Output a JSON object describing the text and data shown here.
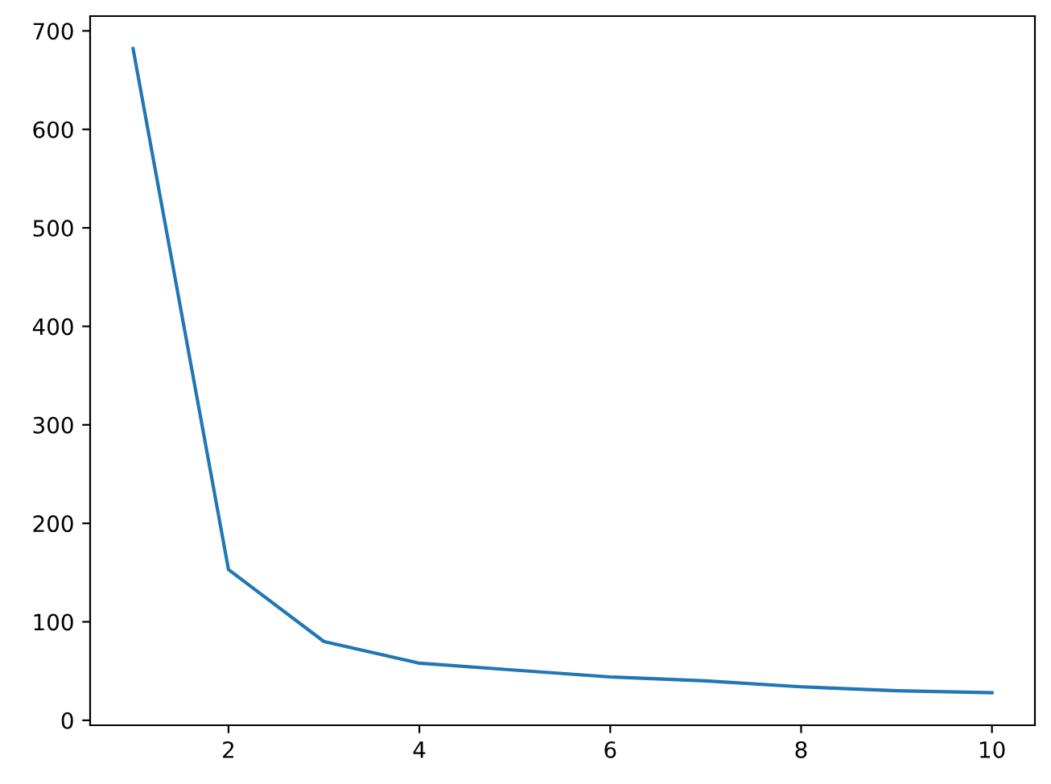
{
  "chart_data": {
    "type": "line",
    "x": [
      1,
      2,
      3,
      4,
      5,
      6,
      7,
      8,
      9,
      10
    ],
    "series": [
      {
        "color": "#1f77b4",
        "values": [
          682,
          153,
          80,
          58,
          51,
          44,
          40,
          34,
          30,
          28
        ]
      }
    ],
    "xlim": [
      0.55,
      10.45
    ],
    "xticks": [
      2,
      4,
      6,
      8,
      10
    ],
    "ylim": [
      -5,
      715
    ],
    "yticks": [
      0,
      100,
      200,
      300,
      400,
      500,
      600,
      700
    ],
    "grid": false,
    "legend": false
  }
}
